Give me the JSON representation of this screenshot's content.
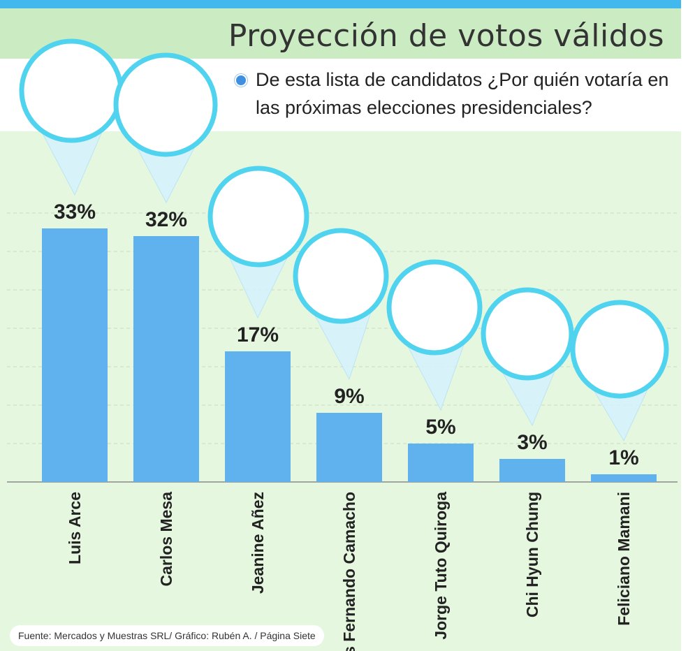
{
  "title": "Proyección de votos válidos",
  "question": "De esta lista de candidatos ¿Por quién votaría en las próximas elecciones presidenciales?",
  "source": "Fuente: Mercados y Muestras SRL/ Gráfico: Rubén A. / Página Siete",
  "colors": {
    "bar": "#5fb2ee",
    "ring": "#4fd3ef",
    "title_band": "#cbecc2",
    "chart_bg": "#e6f7e0",
    "top_bar": "#41b8ee"
  },
  "chart_data": {
    "type": "bar",
    "title": "Proyección de votos válidos",
    "xlabel": "",
    "ylabel": "",
    "ylim": [
      0,
      40
    ],
    "grid": true,
    "categories": [
      "Luis Arce",
      "Carlos Mesa",
      "Jeanine Añez",
      "Luis Fernando Camacho",
      "Jorge Tuto Quiroga",
      "Chi Hyun Chung",
      "Feliciano Mamani"
    ],
    "values": [
      33,
      32,
      17,
      9,
      5,
      3,
      1
    ],
    "value_labels": [
      "33%",
      "32%",
      "17%",
      "9%",
      "5%",
      "3%",
      "1%"
    ]
  }
}
